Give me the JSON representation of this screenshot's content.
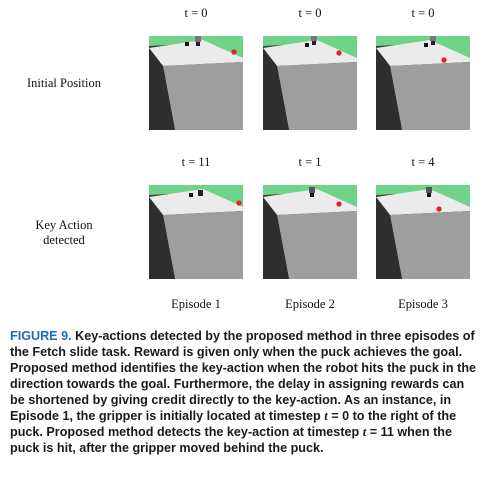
{
  "grid": {
    "row1": {
      "label": "Initial Position",
      "timesteps": [
        "t = 0",
        "t = 0",
        "t = 0"
      ]
    },
    "row2": {
      "label_line1": "Key Action",
      "label_line2": "detected",
      "timesteps": [
        "t = 11",
        "t = 1",
        "t = 4"
      ]
    },
    "episodes": [
      "Episode 1",
      "Episode 2",
      "Episode 3"
    ]
  },
  "caption": {
    "figure_label": "FIGURE 9.",
    "part1": " Key-actions detected by the proposed method in three episodes of the Fetch slide task. Reward is given only when the puck achieves the goal. Proposed method identifies the key-action when the robot hits the puck in the direction towards the goal. Furthermore, the delay in assigning rewards can be shortened by giving credit directly to the key-action. As an instance, in Episode 1, the gripper is initially located at timestep ",
    "math1": "t",
    "part2": " = 0 to the right of the puck. Proposed method detects the key-action at timestep ",
    "math2": "t",
    "part3": " = 11 when the puck is hit, after the gripper moved behind the puck."
  },
  "colors": {
    "floor_green": "#6fd38a",
    "table_top": "#e9e9e9",
    "table_front": "#9c9c9c",
    "shadow": "#3a3a3a",
    "goal_red": "#e0202a",
    "caption_blue": "#1f6bb5"
  }
}
